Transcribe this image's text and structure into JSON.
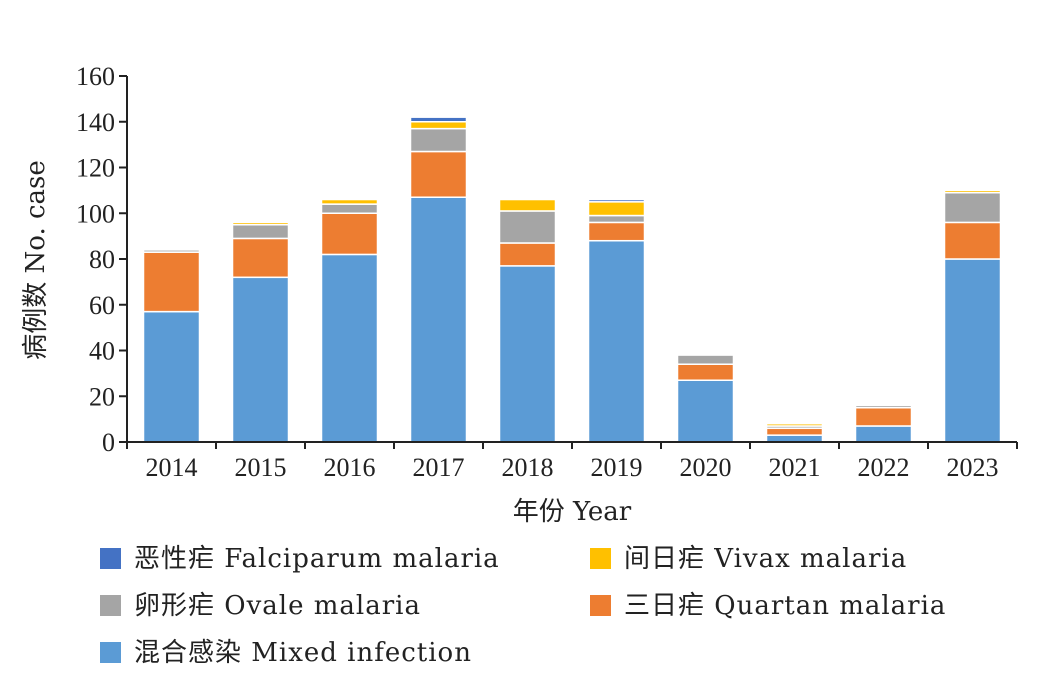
{
  "chart_data": {
    "type": "bar",
    "stacked": true,
    "categories": [
      "2014",
      "2015",
      "2016",
      "2017",
      "2018",
      "2019",
      "2020",
      "2021",
      "2022",
      "2023"
    ],
    "series": [
      {
        "name": "混合感染  Mixed infection",
        "color": "#5b9bd5",
        "values": [
          57,
          72,
          82,
          107,
          77,
          88,
          27,
          3,
          7,
          80
        ]
      },
      {
        "name": "三日疟  Quartan malaria",
        "color": "#ed7d31",
        "values": [
          26,
          17,
          18,
          20,
          10,
          8,
          7,
          3,
          8,
          16
        ]
      },
      {
        "name": "卵形疟  Ovale malaria",
        "color": "#a5a5a5",
        "values": [
          1,
          6,
          4,
          10,
          14,
          3,
          4,
          1,
          1,
          13
        ]
      },
      {
        "name": "间日疟  Vivax malaria",
        "color": "#ffc000",
        "values": [
          0,
          1,
          2,
          3,
          5,
          6,
          0,
          1,
          0,
          1
        ]
      },
      {
        "name": "恶性疟  Falciparum malaria",
        "color": "#4472c4",
        "values": [
          0,
          0,
          0,
          2,
          0,
          1,
          0,
          0,
          0,
          0
        ]
      }
    ],
    "xlabel": "年份  Year",
    "ylabel": "病例数  No. case",
    "ylim": [
      0,
      160
    ],
    "yticks": [
      0,
      20,
      40,
      60,
      80,
      100,
      120,
      140,
      160
    ],
    "grid": false,
    "legend_position": "bottom"
  }
}
